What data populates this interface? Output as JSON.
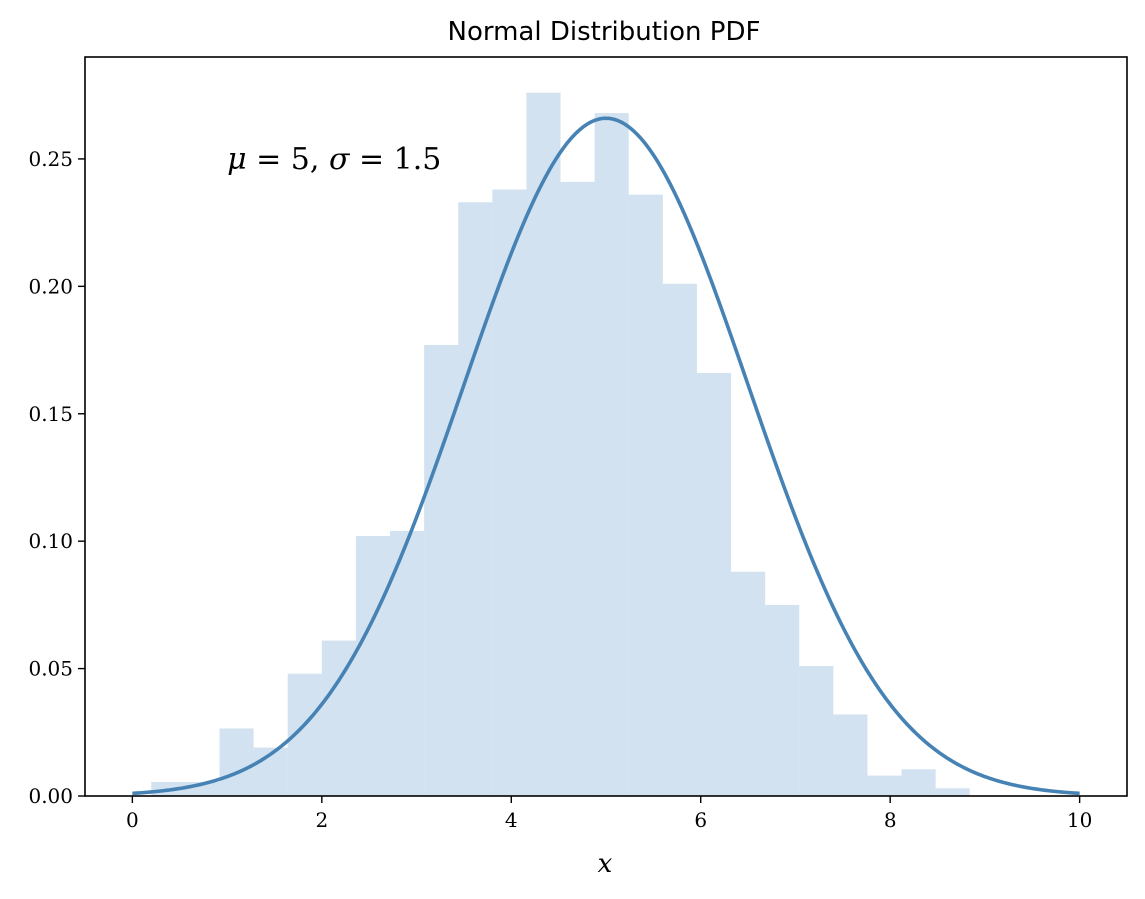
{
  "chart_data": {
    "type": "bar",
    "title": "Normal Distribution PDF",
    "xlabel": "x",
    "ylabel": "",
    "xlim": [
      -0.5,
      10.5
    ],
    "ylim": [
      0,
      0.29
    ],
    "xticks": [
      "0",
      "2",
      "4",
      "6",
      "8",
      "10"
    ],
    "yticks": [
      "0.00",
      "0.05",
      "0.10",
      "0.15",
      "0.20",
      "0.25"
    ],
    "annotation": {
      "mu_symbol": "μ",
      "mu_eq": " = 5, ",
      "sigma_symbol": "σ",
      "sigma_eq": " = 1.5",
      "x": 1.0,
      "y": 0.25
    },
    "histogram": {
      "bin_edges": [
        0.2,
        0.56,
        0.92,
        1.28,
        1.64,
        2.0,
        2.36,
        2.72,
        3.08,
        3.44,
        3.8,
        4.16,
        4.52,
        4.88,
        5.24,
        5.6,
        5.96,
        6.32,
        6.68,
        7.04,
        7.4,
        7.76,
        8.12,
        8.48,
        8.84,
        9.2,
        9.56
      ],
      "values": [
        0.0055,
        0.0055,
        0.0265,
        0.019,
        0.048,
        0.061,
        0.102,
        0.104,
        0.177,
        0.233,
        0.238,
        0.276,
        0.241,
        0.268,
        0.236,
        0.201,
        0.166,
        0.088,
        0.075,
        0.051,
        0.032,
        0.008,
        0.0105,
        0.003,
        0.0,
        0.0
      ],
      "color": "#b4cfe6",
      "opacity": 0.6
    },
    "curve": {
      "type": "line",
      "name": "pdf",
      "mu": 5,
      "sigma": 1.5,
      "x_range": [
        0,
        10
      ],
      "color": "#4682b4"
    }
  }
}
